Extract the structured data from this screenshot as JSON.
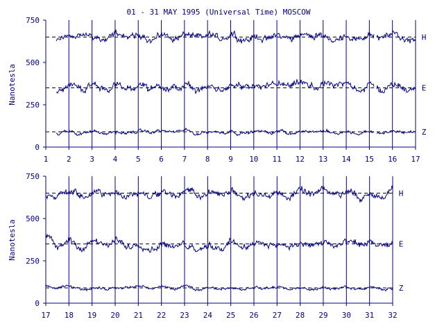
{
  "chart_data": {
    "type": "line",
    "title": "01 - 31 MAY 1995 (Universal Time) MOSCOW",
    "ylabel": "Nanotesla",
    "line_color": "#000080",
    "axis_color": "#000080",
    "dashed_line_color": "#000000",
    "background": "#ffffff",
    "panels": [
      {
        "id": "panel-top",
        "x_range": [
          1,
          17
        ],
        "x_ticks": [
          "1",
          "2",
          "3",
          "4",
          "5",
          "6",
          "7",
          "8",
          "9",
          "10",
          "11",
          "12",
          "13",
          "14",
          "15",
          "16",
          "17"
        ],
        "ylim": [
          0,
          750
        ],
        "y_ticks": [
          "0",
          "250",
          "500",
          "750"
        ],
        "data_start": 1.45,
        "gaps": [
          [
            15.2,
            15.3
          ]
        ],
        "series": [
          {
            "name": "H",
            "baseline": 650,
            "amplitude": 25,
            "start_offset": -15
          },
          {
            "name": "E",
            "baseline": 350,
            "amplitude": 25,
            "start_offset": -10
          },
          {
            "name": "Z",
            "baseline": 90,
            "amplitude": 12,
            "start_offset": -10
          }
        ]
      },
      {
        "id": "panel-bottom",
        "x_range": [
          17,
          32
        ],
        "x_ticks": [
          "17",
          "18",
          "19",
          "20",
          "21",
          "22",
          "23",
          "24",
          "25",
          "26",
          "27",
          "28",
          "29",
          "30",
          "31",
          "32"
        ],
        "ylim": [
          0,
          750
        ],
        "y_ticks": [
          "0",
          "250",
          "500",
          "750"
        ],
        "data_start": 17.0,
        "gaps": [],
        "series": [
          {
            "name": "H",
            "baseline": 650,
            "amplitude": 25,
            "start_offset": -40
          },
          {
            "name": "E",
            "baseline": 350,
            "amplitude": 25,
            "start_offset": 30
          },
          {
            "name": "Z",
            "baseline": 90,
            "amplitude": 10,
            "start_offset": 0
          }
        ]
      }
    ]
  }
}
